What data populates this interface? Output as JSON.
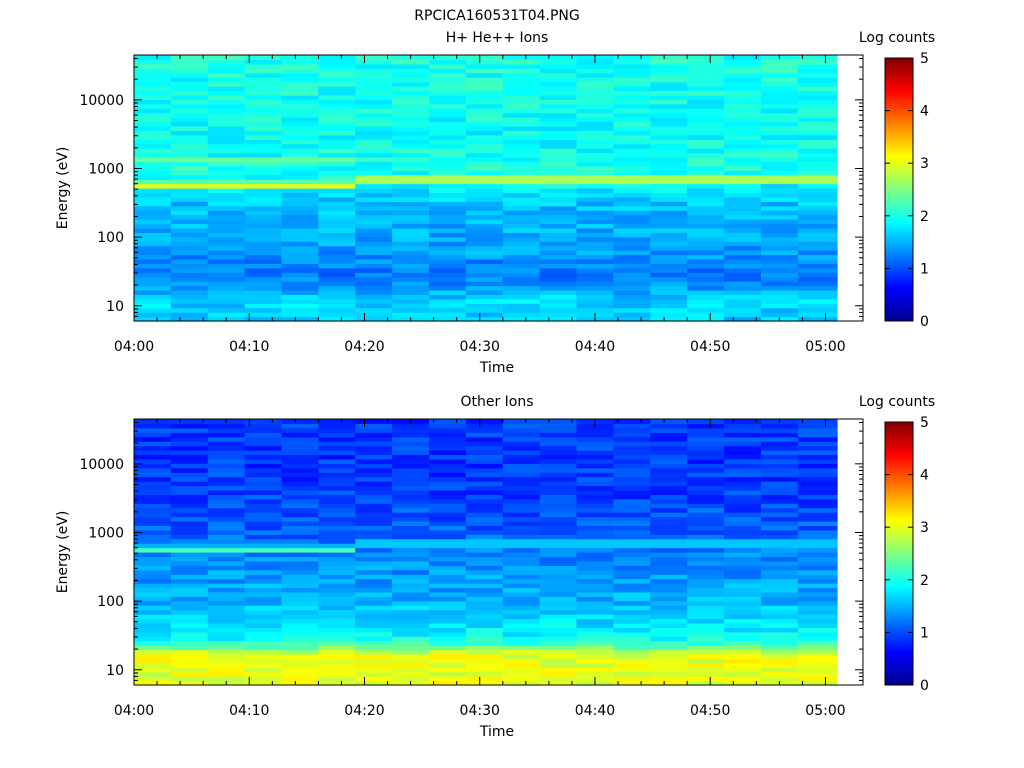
{
  "figure_title": "RPCICA160531T04.PNG",
  "colormap": [
    "#00008f",
    "#0000ff",
    "#0080ff",
    "#00ffff",
    "#80ff80",
    "#ffff00",
    "#ff8000",
    "#ff0000",
    "#800000"
  ],
  "chart_data": [
    {
      "type": "heatmap",
      "title": "H+ He++ Ions",
      "xlabel": "Time",
      "ylabel": "Energy (eV)",
      "yscale": "log",
      "ylim": [
        6,
        45000
      ],
      "y_ticks": [
        10,
        100,
        1000,
        10000
      ],
      "x_ticks": [
        "04:00",
        "04:10",
        "04:20",
        "04:30",
        "04:40",
        "04:50",
        "05:00"
      ],
      "x_range_minutes": [
        0,
        61
      ],
      "colorbar_label": "Log counts",
      "colorbar_range": [
        0,
        5
      ],
      "colorbar_ticks": [
        0,
        1,
        2,
        3,
        4,
        5
      ],
      "time_bins_minutes": [
        0,
        3.2,
        6.4,
        9.6,
        12.8,
        16,
        19.2,
        22.4,
        25.6,
        28.8,
        32,
        35.2,
        38.4,
        41.6,
        44.8,
        48,
        51.2,
        54.4,
        57.6,
        61
      ],
      "energy_profile": [
        {
          "energy": 6,
          "log_counts": 1.6
        },
        {
          "energy": 12,
          "log_counts": 1.7
        },
        {
          "energy": 18,
          "log_counts": 1.4
        },
        {
          "energy": 30,
          "log_counts": 1.2
        },
        {
          "energy": 60,
          "log_counts": 1.4
        },
        {
          "energy": 150,
          "log_counts": 1.5
        },
        {
          "energy": 350,
          "log_counts": 1.6
        },
        {
          "energy": 600,
          "log_counts": 1.9
        },
        {
          "energy": 1000,
          "log_counts": 2.0
        },
        {
          "energy": 3000,
          "log_counts": 1.9
        },
        {
          "energy": 45000,
          "log_counts": 2.0
        }
      ],
      "line_features": [
        {
          "energy": 590,
          "log_counts": 3.0,
          "t_from": 0,
          "t_to": 19.2
        },
        {
          "energy": 1350,
          "log_counts": 2.4,
          "t_from": 0,
          "t_to": 19.2
        },
        {
          "energy": 700,
          "log_counts": 3.4,
          "t_from": 19.2,
          "t_to": 61
        }
      ]
    },
    {
      "type": "heatmap",
      "title": "Other Ions",
      "xlabel": "Time",
      "ylabel": "Energy (eV)",
      "yscale": "log",
      "ylim": [
        6,
        45000
      ],
      "y_ticks": [
        10,
        100,
        1000,
        10000
      ],
      "x_ticks": [
        "04:00",
        "04:10",
        "04:20",
        "04:30",
        "04:40",
        "04:50",
        "05:00"
      ],
      "x_range_minutes": [
        0,
        61
      ],
      "colorbar_label": "Log counts",
      "colorbar_range": [
        0,
        5
      ],
      "colorbar_ticks": [
        0,
        1,
        2,
        3,
        4,
        5
      ],
      "time_bins_minutes": [
        0,
        3.2,
        6.4,
        9.6,
        12.8,
        16,
        19.2,
        22.4,
        25.6,
        28.8,
        32,
        35.2,
        38.4,
        41.6,
        44.8,
        48,
        51.2,
        54.4,
        57.6,
        61
      ],
      "energy_profile": [
        {
          "energy": 6,
          "log_counts": 3.0
        },
        {
          "energy": 17,
          "log_counts": 3.0
        },
        {
          "energy": 22,
          "log_counts": 2.3
        },
        {
          "energy": 30,
          "log_counts": 1.9
        },
        {
          "energy": 100,
          "log_counts": 1.5
        },
        {
          "energy": 400,
          "log_counts": 1.3
        },
        {
          "energy": 1000,
          "log_counts": 1.1
        },
        {
          "energy": 5000,
          "log_counts": 0.9
        },
        {
          "energy": 45000,
          "log_counts": 0.9
        }
      ],
      "line_features": [
        {
          "energy": 590,
          "log_counts": 2.2,
          "t_from": 0,
          "t_to": 19.2
        },
        {
          "energy": 700,
          "log_counts": 2.3,
          "t_from": 19.2,
          "t_to": 61
        }
      ]
    }
  ]
}
